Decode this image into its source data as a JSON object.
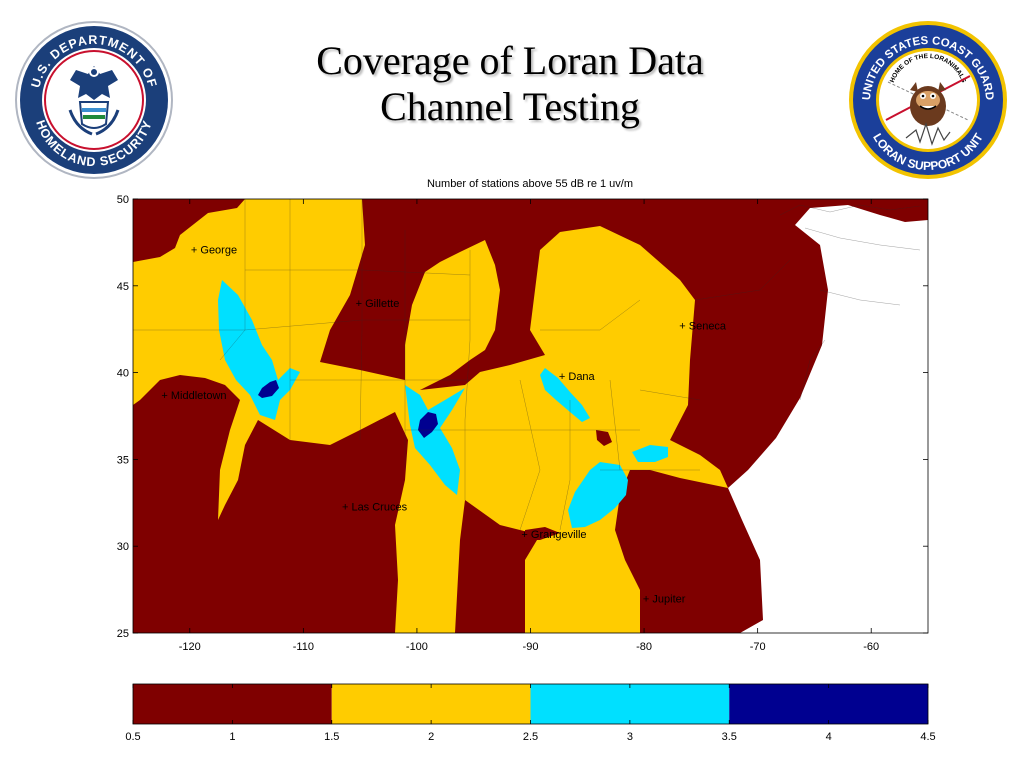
{
  "slide": {
    "title_line1": "Coverage of Loran Data",
    "title_line2": "Channel Testing"
  },
  "logos": {
    "left": {
      "name": "Department of Homeland Security seal",
      "text_top": "U.S. DEPARTMENT OF",
      "text_bottom": "HOMELAND SECURITY",
      "colors": {
        "ring": "#1b3f7a",
        "field": "#ffffff",
        "eagle": "#1b3f7a"
      }
    },
    "right": {
      "name": "Loran Support Unit patch",
      "text_top": "UNITED STATES COAST GUARD",
      "text_inner": "HOME OF THE LORANIMALS",
      "text_bottom": "LORAN SUPPORT UNIT",
      "colors": {
        "ring": "#1b3f9a",
        "border": "#f2c300",
        "field": "#ffffff"
      }
    }
  },
  "map": {
    "title": "Number of stations above 55 dB re 1 uv/m",
    "lon_range": [
      -125,
      -55
    ],
    "lat_range": [
      25,
      50
    ],
    "lon_ticks": [
      -120,
      -110,
      -100,
      -90,
      -80,
      -70,
      -60
    ],
    "lat_ticks": [
      25,
      30,
      35,
      40,
      45,
      50
    ],
    "stations": [
      {
        "name": "George",
        "lon": -119.9,
        "lat": 47.1
      },
      {
        "name": "Gillette",
        "lon": -105.4,
        "lat": 44.0
      },
      {
        "name": "Seneca",
        "lon": -76.9,
        "lat": 42.7
      },
      {
        "name": "Dana",
        "lon": -87.5,
        "lat": 39.8
      },
      {
        "name": "Middletown",
        "lon": -122.5,
        "lat": 38.7
      },
      {
        "name": "Las Cruces",
        "lon": -106.6,
        "lat": 32.3
      },
      {
        "name": "Grangeville",
        "lon": -90.8,
        "lat": 30.7
      },
      {
        "name": "Jupiter",
        "lon": -80.1,
        "lat": 27.0
      }
    ],
    "category_colors": {
      "one": "#7f0000",
      "two": "#ffcc00",
      "three": "#00e0ff",
      "four": "#000090",
      "ocean": "#ffffff"
    }
  },
  "colorbar": {
    "ticks": [
      "0.5",
      "1",
      "1.5",
      "2",
      "2.5",
      "3",
      "3.5",
      "4",
      "4.5"
    ],
    "range": [
      0.5,
      4.5
    ],
    "bands": [
      {
        "from": 0.5,
        "to": 1.5,
        "color": "#7f0000"
      },
      {
        "from": 1.5,
        "to": 2.5,
        "color": "#ffcc00"
      },
      {
        "from": 2.5,
        "to": 3.5,
        "color": "#00e0ff"
      },
      {
        "from": 3.5,
        "to": 4.5,
        "color": "#000090"
      }
    ]
  }
}
